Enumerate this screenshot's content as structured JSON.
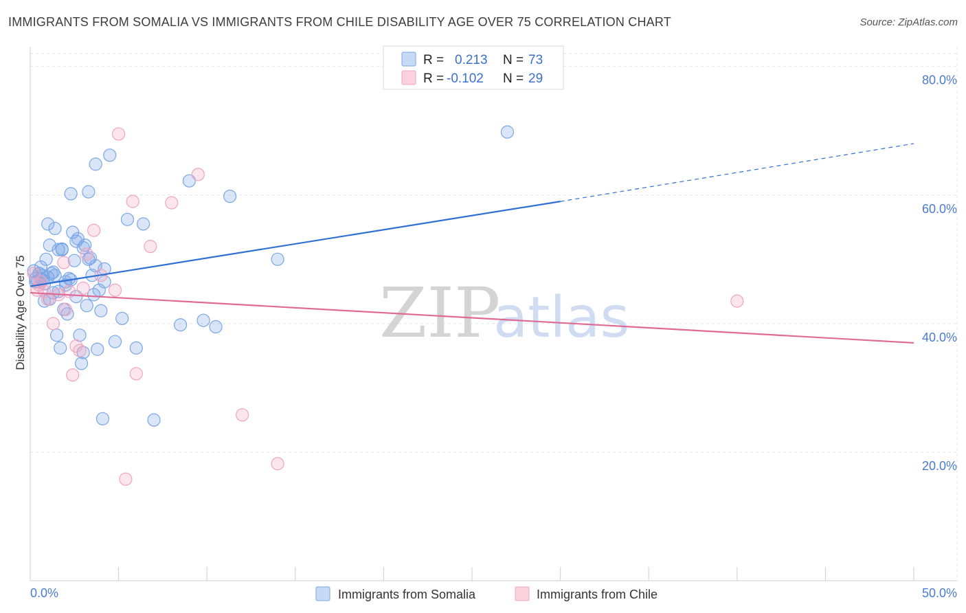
{
  "chart_data": {
    "type": "scatter",
    "title": "IMMIGRANTS FROM SOMALIA VS IMMIGRANTS FROM CHILE DISABILITY AGE OVER 75 CORRELATION CHART",
    "source": "Source: ZipAtlas.com",
    "ylabel": "Disability Age Over 75",
    "xlabel": "",
    "xlim": [
      0,
      50
    ],
    "ylim": [
      0,
      82
    ],
    "x_tick_labels": {
      "min": "0.0%",
      "max": "50.0%"
    },
    "y_ticks": [
      {
        "value": 20,
        "label": "20.0%"
      },
      {
        "value": 40,
        "label": "40.0%"
      },
      {
        "value": 60,
        "label": "60.0%"
      },
      {
        "value": 80,
        "label": "80.0%"
      }
    ],
    "watermark": {
      "part1": "ZIP",
      "part2": "atlas"
    },
    "stats_legend": {
      "r_label": "R =",
      "n_label": "N =",
      "rows": [
        {
          "series": "Immigrants from Somalia",
          "r": "0.213",
          "n": "73"
        },
        {
          "series": "Immigrants from Chile",
          "r": "-0.102",
          "n": "29"
        }
      ]
    },
    "series": [
      {
        "name": "Immigrants from Somalia",
        "color": "#7aa6e6",
        "line_color": "#2f6fd3",
        "trend": {
          "x0": 0,
          "y0": 45.8,
          "x1": 30,
          "y1": 59.0,
          "dash_to_x": 50,
          "dash_to_y": 68.0
        },
        "points": [
          [
            0.2,
            48.2
          ],
          [
            0.3,
            47.0
          ],
          [
            0.4,
            46.5
          ],
          [
            0.5,
            47.8
          ],
          [
            0.6,
            48.8
          ],
          [
            0.7,
            47.5
          ],
          [
            0.8,
            46.2
          ],
          [
            0.8,
            43.5
          ],
          [
            0.9,
            50.0
          ],
          [
            1.0,
            55.5
          ],
          [
            1.1,
            52.2
          ],
          [
            1.2,
            47.8
          ],
          [
            1.3,
            44.8
          ],
          [
            1.4,
            54.8
          ],
          [
            1.5,
            38.2
          ],
          [
            1.6,
            51.5
          ],
          [
            1.7,
            36.2
          ],
          [
            1.8,
            51.6
          ],
          [
            1.9,
            42.2
          ],
          [
            2.0,
            46.5
          ],
          [
            2.1,
            41.5
          ],
          [
            2.2,
            47.0
          ],
          [
            2.3,
            60.2
          ],
          [
            2.4,
            54.2
          ],
          [
            2.5,
            49.8
          ],
          [
            2.6,
            44.2
          ],
          [
            2.7,
            53.2
          ],
          [
            2.8,
            38.2
          ],
          [
            2.9,
            33.8
          ],
          [
            3.0,
            35.5
          ],
          [
            3.1,
            52.2
          ],
          [
            3.2,
            42.8
          ],
          [
            3.3,
            60.5
          ],
          [
            3.4,
            50.2
          ],
          [
            3.5,
            47.5
          ],
          [
            3.6,
            44.5
          ],
          [
            3.7,
            64.8
          ],
          [
            3.8,
            36.0
          ],
          [
            3.9,
            45.2
          ],
          [
            4.0,
            42.0
          ],
          [
            4.1,
            25.2
          ],
          [
            4.2,
            46.5
          ],
          [
            4.5,
            66.2
          ],
          [
            4.8,
            37.2
          ],
          [
            5.2,
            40.8
          ],
          [
            5.5,
            56.2
          ],
          [
            6.0,
            36.2
          ],
          [
            6.4,
            55.5
          ],
          [
            7.0,
            25.0
          ],
          [
            8.5,
            39.8
          ],
          [
            9.0,
            62.2
          ],
          [
            9.8,
            40.5
          ],
          [
            10.5,
            39.5
          ],
          [
            11.3,
            59.8
          ],
          [
            14.0,
            50.0
          ],
          [
            27.0,
            69.8
          ],
          [
            0.3,
            46.5
          ],
          [
            0.5,
            47.8
          ],
          [
            0.7,
            46.8
          ],
          [
            1.0,
            47.2
          ],
          [
            1.4,
            47.5
          ],
          [
            1.8,
            51.5
          ],
          [
            2.0,
            46.0
          ],
          [
            2.6,
            52.8
          ],
          [
            3.0,
            51.8
          ],
          [
            3.3,
            50.0
          ],
          [
            3.7,
            49.0
          ],
          [
            4.2,
            48.5
          ],
          [
            1.1,
            43.8
          ],
          [
            1.6,
            45.0
          ],
          [
            2.3,
            46.8
          ],
          [
            0.6,
            47.0
          ],
          [
            1.3,
            48.0
          ]
        ]
      },
      {
        "name": "Immigrants from Chile",
        "color": "#f0a4bd",
        "line_color": "#e06a94",
        "trend": {
          "x0": 0,
          "y0": 44.8,
          "x1": 50,
          "y1": 37.0
        },
        "points": [
          [
            0.2,
            47.8
          ],
          [
            0.4,
            45.2
          ],
          [
            0.6,
            46.5
          ],
          [
            0.8,
            45.0
          ],
          [
            1.0,
            43.8
          ],
          [
            1.3,
            40.0
          ],
          [
            1.6,
            44.5
          ],
          [
            1.9,
            49.5
          ],
          [
            2.0,
            42.2
          ],
          [
            2.2,
            45.0
          ],
          [
            2.4,
            32.0
          ],
          [
            2.6,
            36.5
          ],
          [
            2.8,
            35.8
          ],
          [
            3.0,
            45.5
          ],
          [
            3.2,
            50.8
          ],
          [
            3.6,
            54.5
          ],
          [
            4.0,
            47.5
          ],
          [
            4.8,
            45.2
          ],
          [
            5.0,
            69.5
          ],
          [
            5.4,
            15.8
          ],
          [
            5.8,
            59.0
          ],
          [
            6.0,
            32.2
          ],
          [
            6.8,
            52.0
          ],
          [
            8.0,
            58.8
          ],
          [
            9.5,
            63.2
          ],
          [
            12.0,
            25.8
          ],
          [
            14.0,
            18.2
          ],
          [
            40.0,
            43.5
          ],
          [
            0.5,
            46.0
          ]
        ]
      }
    ]
  }
}
